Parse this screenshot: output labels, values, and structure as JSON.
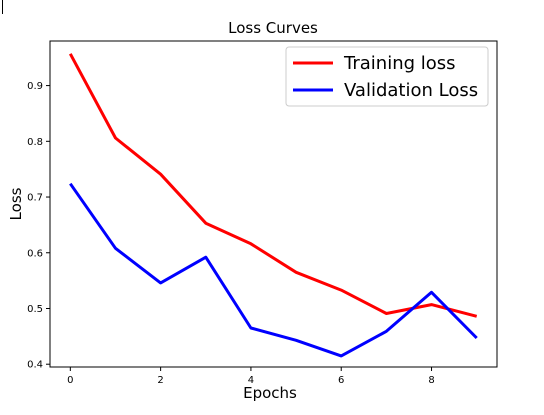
{
  "chart_data": {
    "type": "line",
    "title": "Loss Curves",
    "xlabel": "Epochs",
    "ylabel": "Loss",
    "x": [
      0,
      1,
      2,
      3,
      4,
      5,
      6,
      7,
      8,
      9
    ],
    "xlim": [
      -0.45,
      9.45
    ],
    "ylim": [
      0.395,
      0.98
    ],
    "xticks": [
      0,
      2,
      4,
      6,
      8
    ],
    "yticks": [
      0.4,
      0.5,
      0.6,
      0.7,
      0.8,
      0.9
    ],
    "grid": false,
    "legend_position": "top-right",
    "series": [
      {
        "name": "Training loss",
        "color": "#ff0000",
        "values": [
          0.957,
          0.806,
          0.741,
          0.653,
          0.616,
          0.565,
          0.533,
          0.491,
          0.507,
          0.486
        ]
      },
      {
        "name": "Validation Loss",
        "color": "#0000ff",
        "values": [
          0.724,
          0.608,
          0.546,
          0.592,
          0.465,
          0.443,
          0.415,
          0.459,
          0.529,
          0.447
        ]
      }
    ]
  }
}
